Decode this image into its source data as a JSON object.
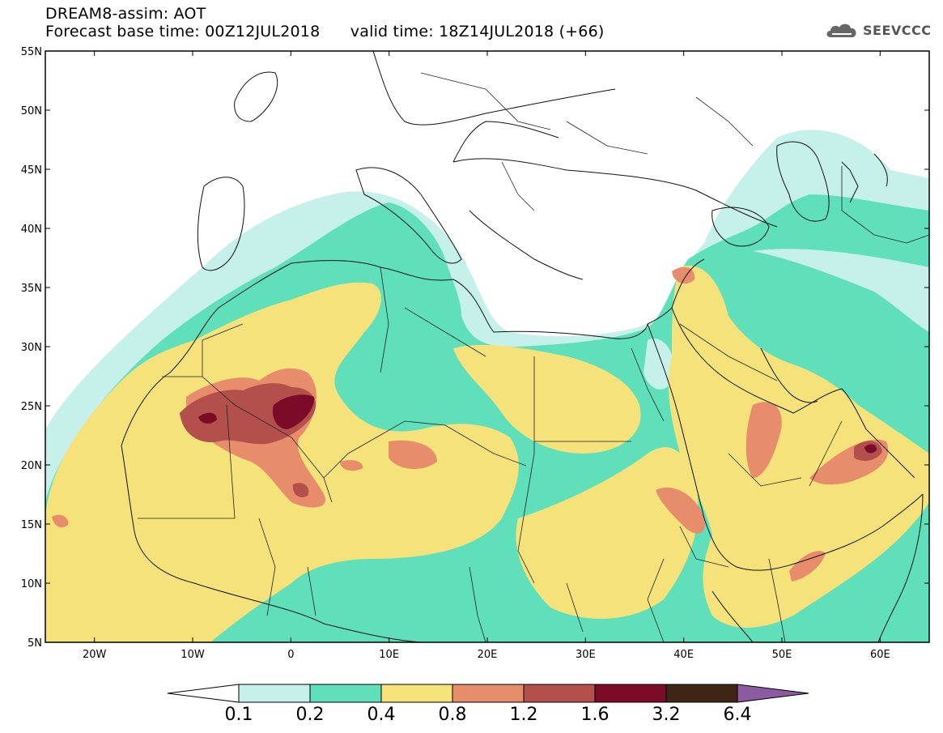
{
  "header": {
    "title": "DREAM8-assim: AOT",
    "forecast_base": "Forecast base time: 00Z12JUL2018",
    "valid_time": "valid time: 18Z14JUL2018 (+66)"
  },
  "logo": {
    "text": "SEEVCCC",
    "icon": "cloud-icon"
  },
  "map": {
    "lat_range": [
      5,
      55
    ],
    "lon_range": [
      -25,
      65
    ],
    "lat_ticks": [
      "55N",
      "50N",
      "45N",
      "40N",
      "35N",
      "30N",
      "25N",
      "20N",
      "15N",
      "10N",
      "5N"
    ],
    "lon_ticks": [
      "20W",
      "10W",
      "0",
      "10E",
      "20E",
      "30E",
      "40E",
      "50E",
      "60E"
    ]
  },
  "colorbar": {
    "labels": [
      "0.1",
      "0.2",
      "0.4",
      "0.8",
      "1.2",
      "1.6",
      "3.2",
      "6.4"
    ],
    "colors": [
      "#c6f0ea",
      "#5fe0ba",
      "#f5e27a",
      "#e88d6b",
      "#b4504b",
      "#7c0b27",
      "#3f2614",
      "#8b5aa0"
    ]
  }
}
